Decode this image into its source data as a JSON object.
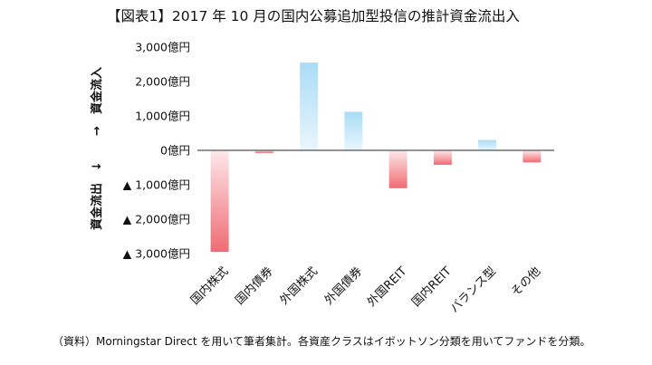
{
  "chart_data": {
    "type": "bar",
    "title": "【図表1】2017 年 10 月の国内公募追加型投信の推計資金流出入",
    "categories": [
      "国内株式",
      "国内債券",
      "外国株式",
      "外国債券",
      "外国REIT",
      "国内REIT",
      "バランス型",
      "その他"
    ],
    "values": [
      -2950,
      -80,
      2550,
      1120,
      -1100,
      -420,
      300,
      -350
    ],
    "unit": "億円",
    "ylim": [
      -3000,
      3000
    ],
    "yticks": [
      3000,
      2000,
      1000,
      0,
      -1000,
      -2000,
      -3000
    ],
    "ytick_labels": [
      "3,000億円",
      "2,000億円",
      "1,000億円",
      "0億円",
      "▲ 1,000億円",
      "▲ 2,000億円",
      "▲ 3,000億円"
    ],
    "ylabel_top": "→　資金流入",
    "ylabel_bottom": "資金流出　↓",
    "grid": false,
    "legend": "none",
    "colors": {
      "positive_top": "#a9dcf6",
      "positive_bottom": "#e9f6fd",
      "negative_top": "#fde8ea",
      "negative_bottom": "#f06b73",
      "axis": "#555555"
    }
  },
  "source_note": "（資料）Morningstar Direct を用いて筆者集計。各資産クラスはイボットソン分類を用いてファンドを分類。"
}
